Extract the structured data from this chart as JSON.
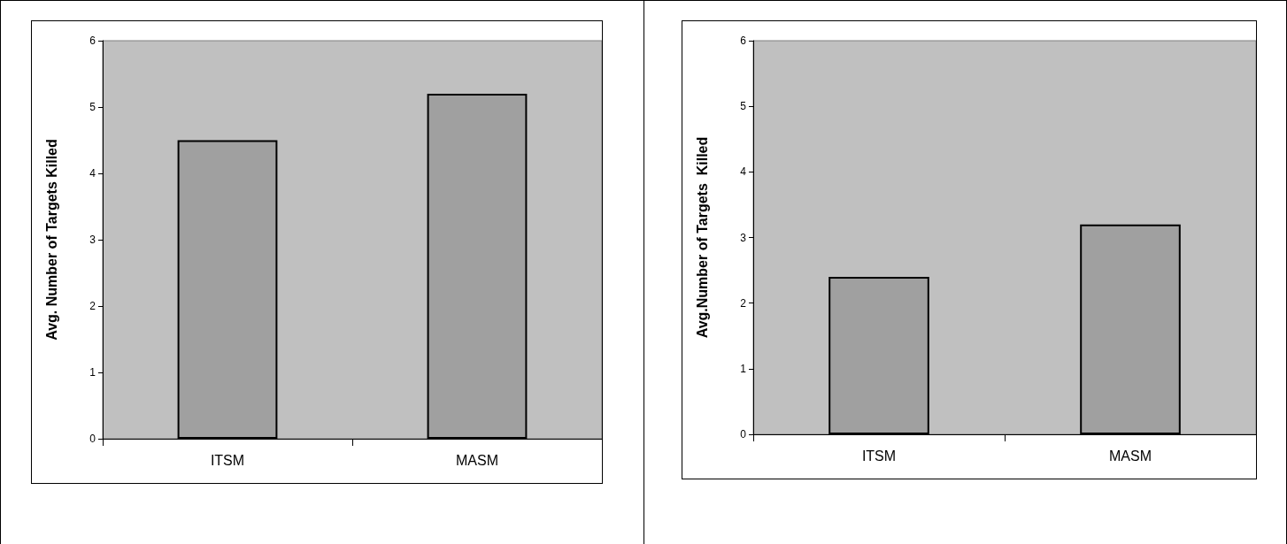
{
  "chart_data": [
    {
      "type": "bar",
      "ylabel": "Avg. Number of Targets Killed",
      "categories": [
        "ITSM",
        "MASM"
      ],
      "values": [
        4.5,
        5.2
      ],
      "color": "#a0a0a0",
      "ylim": [
        0,
        6
      ],
      "yticks": [
        0,
        1,
        2,
        3,
        4,
        5,
        6
      ],
      "grid": false
    },
    {
      "type": "bar",
      "ylabel": "Avg.Number of Targets  Killed",
      "categories": [
        "ITSM",
        "MASM"
      ],
      "values": [
        2.4,
        3.2
      ],
      "color": "#a0a0a0",
      "ylim": [
        0,
        6
      ],
      "yticks": [
        0,
        1,
        2,
        3,
        4,
        5,
        6
      ],
      "grid": false
    }
  ]
}
